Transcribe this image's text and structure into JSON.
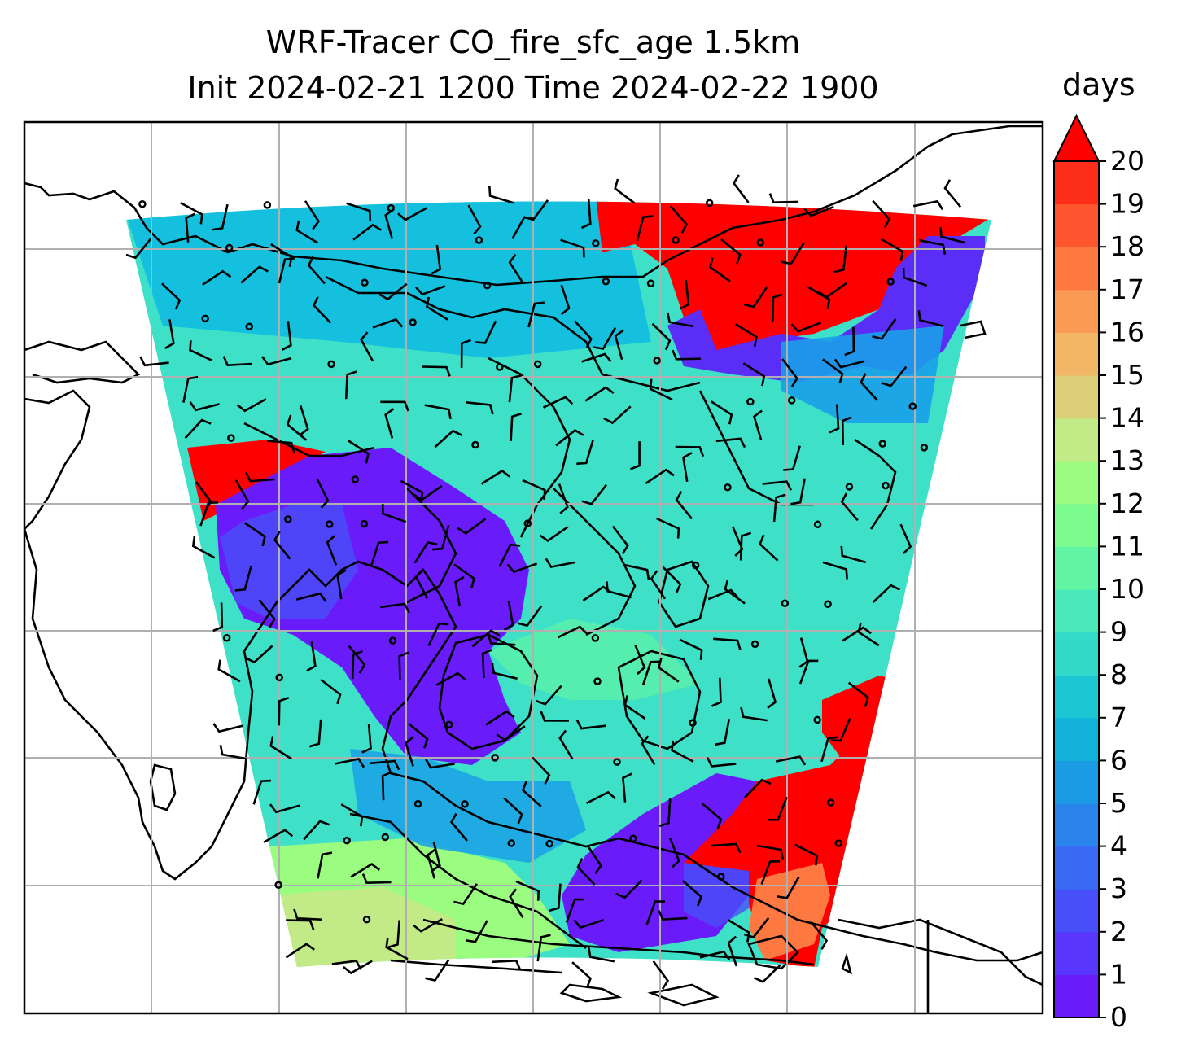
{
  "title": {
    "line1": "WRF-Tracer CO_fire_sfc_age 1.5km",
    "line2": "Init 2024-02-21 1200 Time 2024-02-22 1900"
  },
  "colorbar": {
    "label": "days",
    "min": 0,
    "max": 20,
    "ticks": [
      "0",
      "1",
      "2",
      "3",
      "4",
      "5",
      "6",
      "7",
      "8",
      "9",
      "10",
      "11",
      "12",
      "13",
      "14",
      "15",
      "16",
      "17",
      "18",
      "19",
      "20"
    ],
    "extend": "max",
    "colors": [
      "#6a1bfa",
      "#5836fb",
      "#4750f8",
      "#3a6af3",
      "#2a84ec",
      "#1a9be4",
      "#11b1dc",
      "#1dc6d3",
      "#33d9c9",
      "#4ae9b9",
      "#61f4a4",
      "#7cfb8e",
      "#9bfd80",
      "#c2ea87",
      "#dccf78",
      "#f1b767",
      "#fb9a53",
      "#fe7841",
      "#fe562f",
      "#fd2e1a"
    ],
    "extend_color": "#ff0000"
  },
  "map": {
    "colormap": "rainbow",
    "background": "#ffffff",
    "grid": true,
    "coastlines": true,
    "wind_barbs": true
  }
}
